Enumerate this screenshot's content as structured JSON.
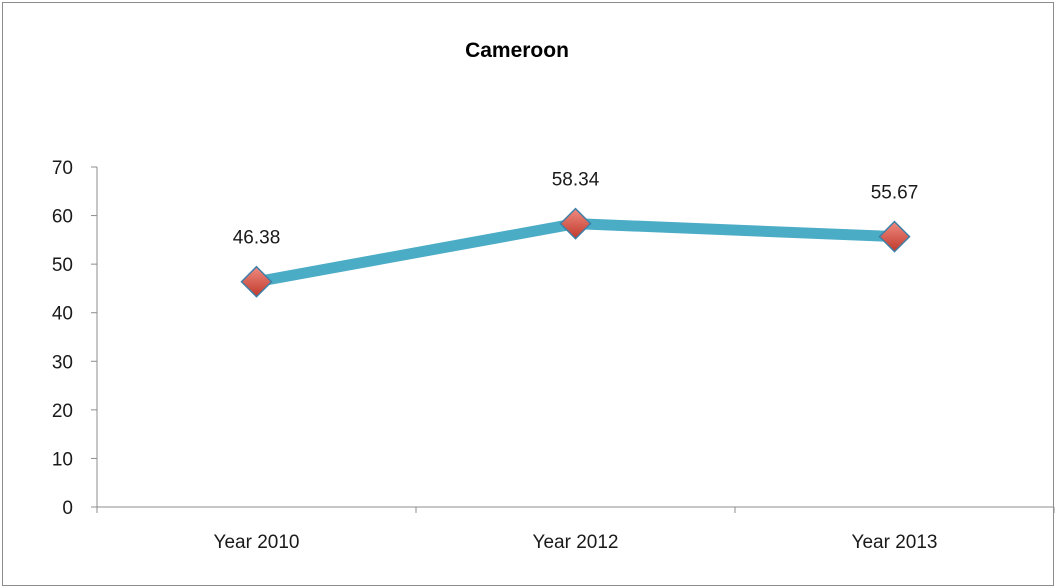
{
  "chart_data": {
    "type": "line",
    "title": "Cameroon",
    "xlabel": "",
    "ylabel": "",
    "categories": [
      "Year 2010",
      "Year 2012",
      "Year 2013"
    ],
    "series": [
      {
        "values": [
          46.38,
          58.34,
          55.67
        ]
      }
    ],
    "data_labels": [
      "46.38",
      "58.34",
      "55.67"
    ],
    "ylim": [
      0,
      70
    ],
    "y_ticks": [
      0,
      10,
      20,
      30,
      40,
      50,
      60,
      70
    ],
    "grid": false,
    "legend": "none",
    "colors": {
      "line": "#4bacc6",
      "marker_fill": "#e0504e",
      "marker_edge": "#3e7fa8"
    },
    "marker": "diamond-icon"
  }
}
